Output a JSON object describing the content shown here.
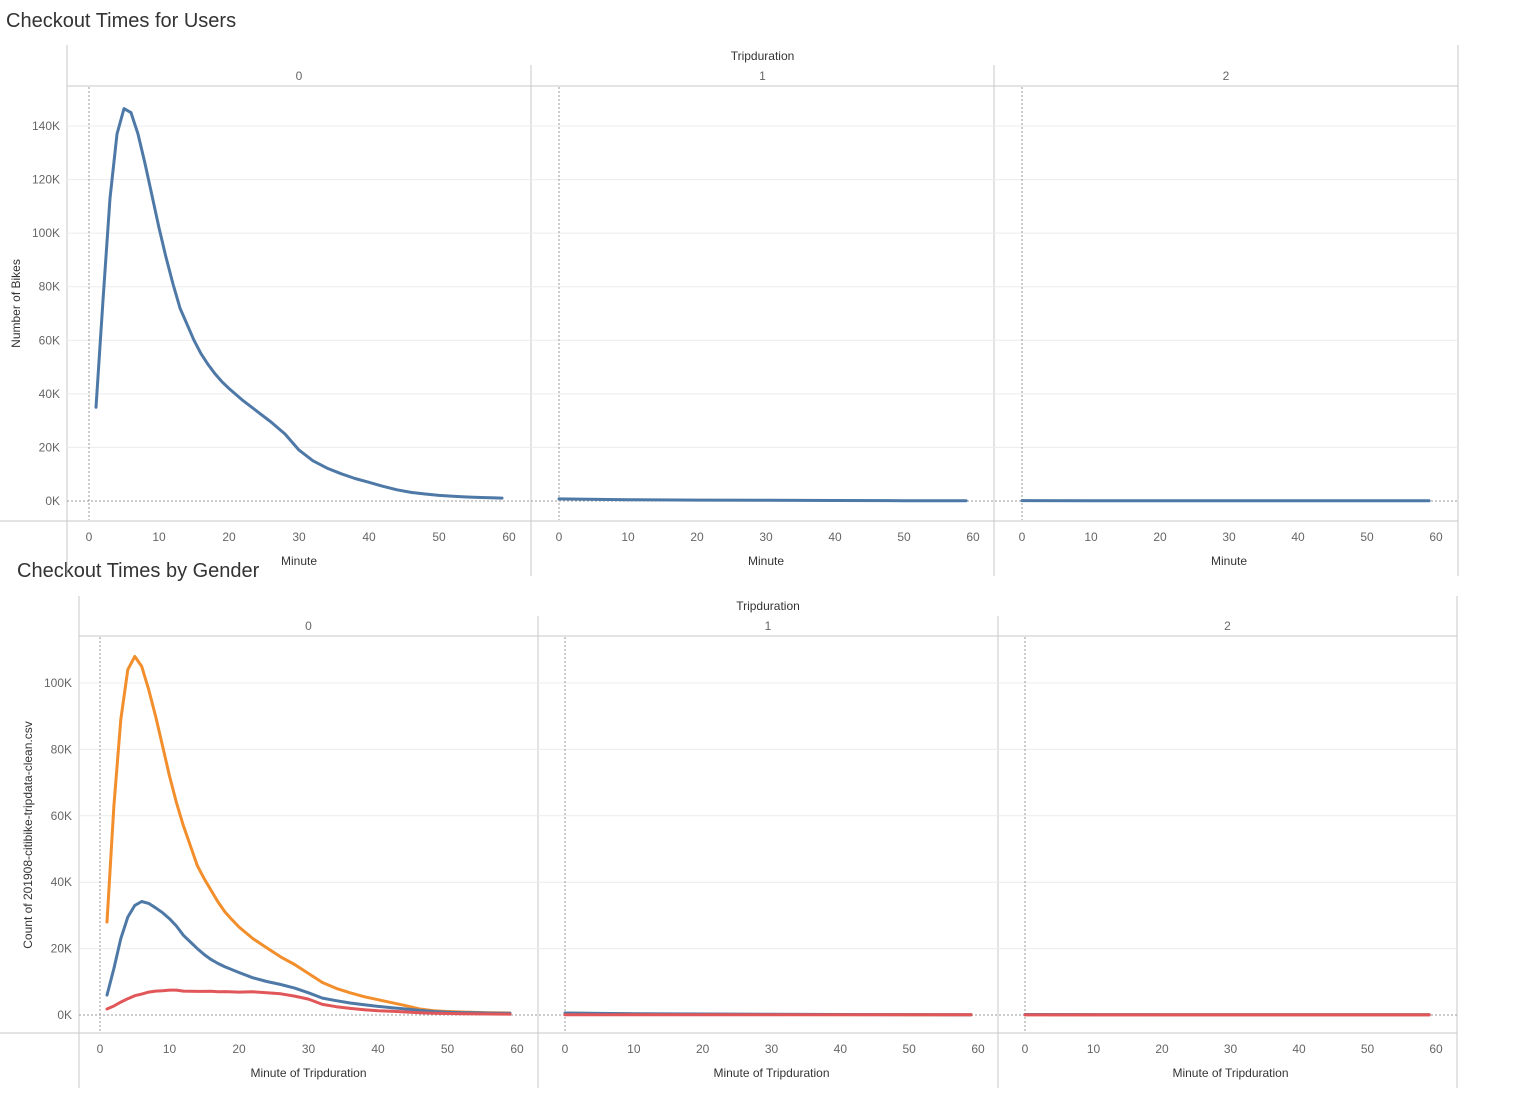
{
  "chart_data": [
    {
      "type": "line",
      "title": "Checkout Times for Users",
      "column_header": "Tripduration",
      "panels": [
        "0",
        "1",
        "2"
      ],
      "xlabel": "Minute",
      "ylabel": "Number of Bikes",
      "xlim": [
        0,
        60
      ],
      "xticks": [
        0,
        10,
        20,
        30,
        40,
        50,
        60
      ],
      "ylim": [
        0,
        148000
      ],
      "yticks": [
        0,
        20000,
        40000,
        60000,
        80000,
        100000,
        120000,
        140000
      ],
      "ytick_labels": [
        "0K",
        "20K",
        "40K",
        "60K",
        "80K",
        "100K",
        "120K",
        "140K"
      ],
      "series": [
        {
          "color": "#4e79a7",
          "panel_values": [
            [
              [
                1,
                35000
              ],
              [
                2,
                75000
              ],
              [
                3,
                113000
              ],
              [
                4,
                137000
              ],
              [
                5,
                146500
              ],
              [
                6,
                145000
              ],
              [
                7,
                137000
              ],
              [
                8,
                126000
              ],
              [
                9,
                114000
              ],
              [
                10,
                102000
              ],
              [
                11,
                91000
              ],
              [
                12,
                81000
              ],
              [
                13,
                72000
              ],
              [
                14,
                66000
              ],
              [
                15,
                60000
              ],
              [
                16,
                55000
              ],
              [
                17,
                51000
              ],
              [
                18,
                47500
              ],
              [
                19,
                44500
              ],
              [
                20,
                42000
              ],
              [
                22,
                37500
              ],
              [
                24,
                33500
              ],
              [
                26,
                29500
              ],
              [
                28,
                25000
              ],
              [
                30,
                19000
              ],
              [
                32,
                15000
              ],
              [
                34,
                12300
              ],
              [
                36,
                10200
              ],
              [
                38,
                8400
              ],
              [
                40,
                7000
              ],
              [
                42,
                5500
              ],
              [
                44,
                4200
              ],
              [
                46,
                3200
              ],
              [
                48,
                2600
              ],
              [
                50,
                2100
              ],
              [
                52,
                1800
              ],
              [
                54,
                1500
              ],
              [
                56,
                1300
              ],
              [
                58,
                1150
              ],
              [
                59,
                1100
              ]
            ],
            [
              [
                0,
                800
              ],
              [
                10,
                500
              ],
              [
                20,
                350
              ],
              [
                30,
                250
              ],
              [
                40,
                180
              ],
              [
                50,
                120
              ],
              [
                59,
                80
              ]
            ],
            [
              [
                0,
                150
              ],
              [
                10,
                120
              ],
              [
                20,
                100
              ],
              [
                30,
                90
              ],
              [
                40,
                80
              ],
              [
                50,
                70
              ],
              [
                59,
                60
              ]
            ]
          ]
        }
      ]
    },
    {
      "type": "line",
      "title": "Checkout Times by Gender",
      "column_header": "Tripduration",
      "panels": [
        "0",
        "1",
        "2"
      ],
      "xlabel": "Minute of Tripduration",
      "ylabel": "Count of 201908-citibike-tripdata-clean.csv",
      "xlim": [
        0,
        60
      ],
      "xticks": [
        0,
        10,
        20,
        30,
        40,
        50,
        60
      ],
      "ylim": [
        0,
        110000
      ],
      "yticks": [
        0,
        20000,
        40000,
        60000,
        80000,
        100000
      ],
      "ytick_labels": [
        "0K",
        "20K",
        "40K",
        "60K",
        "80K",
        "100K"
      ],
      "series": [
        {
          "color": "#f28e2b",
          "panel_values": [
            [
              [
                1,
                28000
              ],
              [
                2,
                63000
              ],
              [
                3,
                89000
              ],
              [
                4,
                104000
              ],
              [
                5,
                108000
              ],
              [
                6,
                105000
              ],
              [
                7,
                98000
              ],
              [
                8,
                90000
              ],
              [
                9,
                81000
              ],
              [
                10,
                72000
              ],
              [
                11,
                64000
              ],
              [
                12,
                57000
              ],
              [
                13,
                51000
              ],
              [
                14,
                45000
              ],
              [
                15,
                41000
              ],
              [
                16,
                37500
              ],
              [
                17,
                34000
              ],
              [
                18,
                31000
              ],
              [
                19,
                28700
              ],
              [
                20,
                26500
              ],
              [
                22,
                23000
              ],
              [
                24,
                20200
              ],
              [
                26,
                17500
              ],
              [
                28,
                15200
              ],
              [
                30,
                12500
              ],
              [
                32,
                9800
              ],
              [
                34,
                8000
              ],
              [
                36,
                6700
              ],
              [
                38,
                5500
              ],
              [
                40,
                4600
              ],
              [
                42,
                3700
              ],
              [
                44,
                2800
              ],
              [
                46,
                1800
              ],
              [
                48,
                1300
              ],
              [
                50,
                1050
              ],
              [
                52,
                900
              ],
              [
                54,
                780
              ],
              [
                56,
                700
              ],
              [
                58,
                620
              ],
              [
                59,
                600
              ]
            ],
            [
              [
                0,
                500
              ],
              [
                10,
                320
              ],
              [
                20,
                220
              ],
              [
                30,
                160
              ],
              [
                40,
                120
              ],
              [
                50,
                90
              ],
              [
                59,
                70
              ]
            ],
            [
              [
                0,
                120
              ],
              [
                10,
                100
              ],
              [
                20,
                90
              ],
              [
                30,
                80
              ],
              [
                40,
                70
              ],
              [
                50,
                60
              ],
              [
                59,
                50
              ]
            ]
          ]
        },
        {
          "color": "#4e79a7",
          "panel_values": [
            [
              [
                1,
                6000
              ],
              [
                2,
                14000
              ],
              [
                3,
                23000
              ],
              [
                4,
                29500
              ],
              [
                5,
                33000
              ],
              [
                6,
                34200
              ],
              [
                7,
                33600
              ],
              [
                8,
                32300
              ],
              [
                9,
                30800
              ],
              [
                10,
                29000
              ],
              [
                11,
                26800
              ],
              [
                12,
                24000
              ],
              [
                13,
                22000
              ],
              [
                14,
                20000
              ],
              [
                15,
                18200
              ],
              [
                16,
                16700
              ],
              [
                17,
                15500
              ],
              [
                18,
                14500
              ],
              [
                20,
                12800
              ],
              [
                22,
                11200
              ],
              [
                24,
                10100
              ],
              [
                26,
                9200
              ],
              [
                28,
                8100
              ],
              [
                30,
                6700
              ],
              [
                32,
                5100
              ],
              [
                34,
                4300
              ],
              [
                36,
                3600
              ],
              [
                38,
                3100
              ],
              [
                40,
                2600
              ],
              [
                42,
                2200
              ],
              [
                44,
                1800
              ],
              [
                46,
                1400
              ],
              [
                48,
                1050
              ],
              [
                50,
                850
              ],
              [
                52,
                720
              ],
              [
                54,
                650
              ],
              [
                56,
                580
              ],
              [
                58,
                520
              ],
              [
                59,
                500
              ]
            ],
            [
              [
                0,
                600
              ],
              [
                10,
                400
              ],
              [
                20,
                300
              ],
              [
                30,
                220
              ],
              [
                40,
                160
              ],
              [
                50,
                110
              ],
              [
                59,
                80
              ]
            ],
            [
              [
                0,
                150
              ],
              [
                10,
                120
              ],
              [
                20,
                100
              ],
              [
                30,
                90
              ],
              [
                40,
                80
              ],
              [
                50,
                70
              ],
              [
                59,
                60
              ]
            ]
          ]
        },
        {
          "color": "#e15759",
          "panel_values": [
            [
              [
                1,
                1800
              ],
              [
                2,
                2700
              ],
              [
                3,
                3900
              ],
              [
                4,
                4900
              ],
              [
                5,
                5800
              ],
              [
                6,
                6300
              ],
              [
                7,
                6900
              ],
              [
                8,
                7200
              ],
              [
                9,
                7300
              ],
              [
                10,
                7500
              ],
              [
                11,
                7500
              ],
              [
                12,
                7200
              ],
              [
                13,
                7150
              ],
              [
                14,
                7100
              ],
              [
                15,
                7100
              ],
              [
                16,
                7150
              ],
              [
                17,
                7000
              ],
              [
                18,
                7050
              ],
              [
                20,
                6900
              ],
              [
                22,
                7000
              ],
              [
                24,
                6700
              ],
              [
                26,
                6400
              ],
              [
                28,
                5700
              ],
              [
                30,
                4800
              ],
              [
                32,
                3200
              ],
              [
                34,
                2500
              ],
              [
                36,
                2000
              ],
              [
                38,
                1600
              ],
              [
                40,
                1300
              ],
              [
                42,
                1100
              ],
              [
                44,
                900
              ],
              [
                46,
                700
              ],
              [
                48,
                550
              ],
              [
                50,
                450
              ],
              [
                52,
                380
              ],
              [
                54,
                330
              ],
              [
                56,
                300
              ],
              [
                58,
                270
              ],
              [
                59,
                250
              ]
            ],
            [
              [
                0,
                100
              ],
              [
                20,
                80
              ],
              [
                40,
                60
              ],
              [
                59,
                50
              ]
            ],
            [
              [
                0,
                40
              ],
              [
                20,
                30
              ],
              [
                40,
                25
              ],
              [
                59,
                20
              ]
            ]
          ]
        }
      ]
    }
  ]
}
